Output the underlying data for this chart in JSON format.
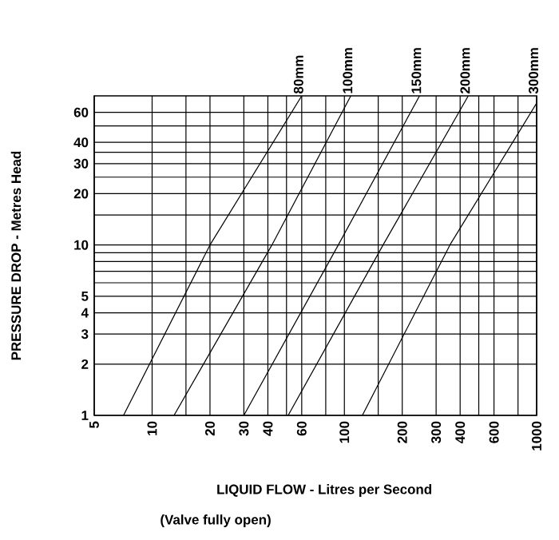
{
  "chart_data": {
    "type": "line",
    "xlabel": "LIQUID FLOW - Litres per Second",
    "ylabel": "PRESSURE DROP - Metres Head",
    "annotations": [
      "(Valve fully open)"
    ],
    "log": "xy",
    "grid": true,
    "marker": "none",
    "line_style": "solid",
    "xlim": [
      5,
      1000
    ],
    "ylim": [
      1,
      75
    ],
    "xticks": [
      5,
      10,
      {
        "value": 15,
        "label": null
      },
      20,
      30,
      40,
      {
        "value": 50,
        "label": null
      },
      60,
      {
        "value": 80,
        "label": null
      },
      100,
      {
        "value": 150,
        "label": null
      },
      200,
      300,
      400,
      {
        "value": 500,
        "label": null
      },
      600,
      {
        "value": 800,
        "label": null
      },
      1000
    ],
    "yticks": [
      1,
      2,
      3,
      4,
      5,
      {
        "value": 6,
        "label": null
      },
      {
        "value": 7,
        "label": null
      },
      {
        "value": 8,
        "label": null
      },
      {
        "value": 9,
        "label": null
      },
      10,
      {
        "value": 15,
        "label": null
      },
      20,
      {
        "value": 25,
        "label": null
      },
      30,
      {
        "value": 35,
        "label": null
      },
      40,
      {
        "value": 50,
        "label": null
      },
      60
    ],
    "series": [
      {
        "name": "80mm",
        "color": "#000000",
        "x": [
          7.1,
          20,
          60
        ],
        "values": [
          1,
          10,
          75
        ]
      },
      {
        "name": "100mm",
        "color": "#000000",
        "x": [
          13,
          42,
          108
        ],
        "values": [
          1,
          10,
          75
        ]
      },
      {
        "name": "150mm",
        "color": "#000000",
        "x": [
          30,
          93,
          246
        ],
        "values": [
          1,
          10,
          75
        ]
      },
      {
        "name": "200mm",
        "color": "#000000",
        "x": [
          51,
          159,
          441
        ],
        "values": [
          1,
          10,
          75
        ]
      },
      {
        "name": "300mm",
        "color": "#000000",
        "x": [
          124,
          354,
          1000
        ],
        "values": [
          1,
          10,
          68
        ]
      }
    ]
  }
}
